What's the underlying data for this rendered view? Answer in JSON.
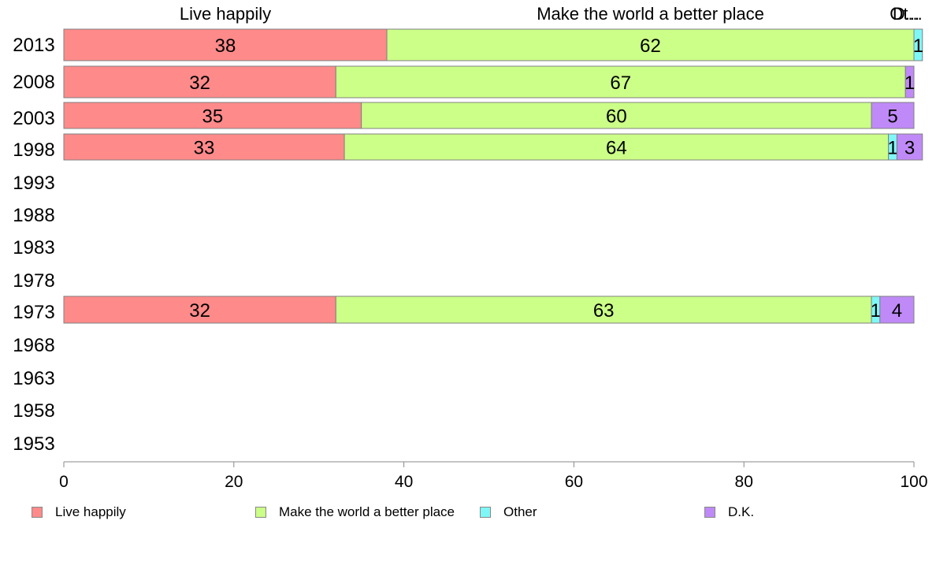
{
  "chart_data": {
    "type": "bar",
    "orientation": "horizontal",
    "stacked": true,
    "categories": [
      "2013",
      "2008",
      "2003",
      "1998",
      "1993",
      "1988",
      "1983",
      "1978",
      "1973",
      "1968",
      "1963",
      "1958",
      "1953"
    ],
    "series": [
      {
        "name": "Live happily",
        "color": "#ff8a8a",
        "values": [
          38,
          32,
          35,
          33,
          null,
          null,
          null,
          null,
          32,
          null,
          null,
          null,
          null
        ]
      },
      {
        "name": "Make the world a better place",
        "color": "#ccff88",
        "values": [
          62,
          67,
          60,
          64,
          null,
          null,
          null,
          null,
          63,
          null,
          null,
          null,
          null
        ]
      },
      {
        "name": "Other",
        "color": "#7ff7f7",
        "values": [
          1,
          0,
          0,
          1,
          null,
          null,
          null,
          null,
          1,
          null,
          null,
          null,
          null
        ]
      },
      {
        "name": "D.K.",
        "color": "#bf8af7",
        "values": [
          0,
          1,
          5,
          3,
          null,
          null,
          null,
          null,
          4,
          null,
          null,
          null,
          null
        ]
      }
    ],
    "top_labels": [
      "Live happily",
      "Make the world a better place",
      "Ot...",
      "D..."
    ],
    "xlim": [
      0,
      100
    ],
    "xticks": [
      0,
      20,
      40,
      60,
      80,
      100
    ],
    "grid": false,
    "legend_position": "bottom"
  }
}
